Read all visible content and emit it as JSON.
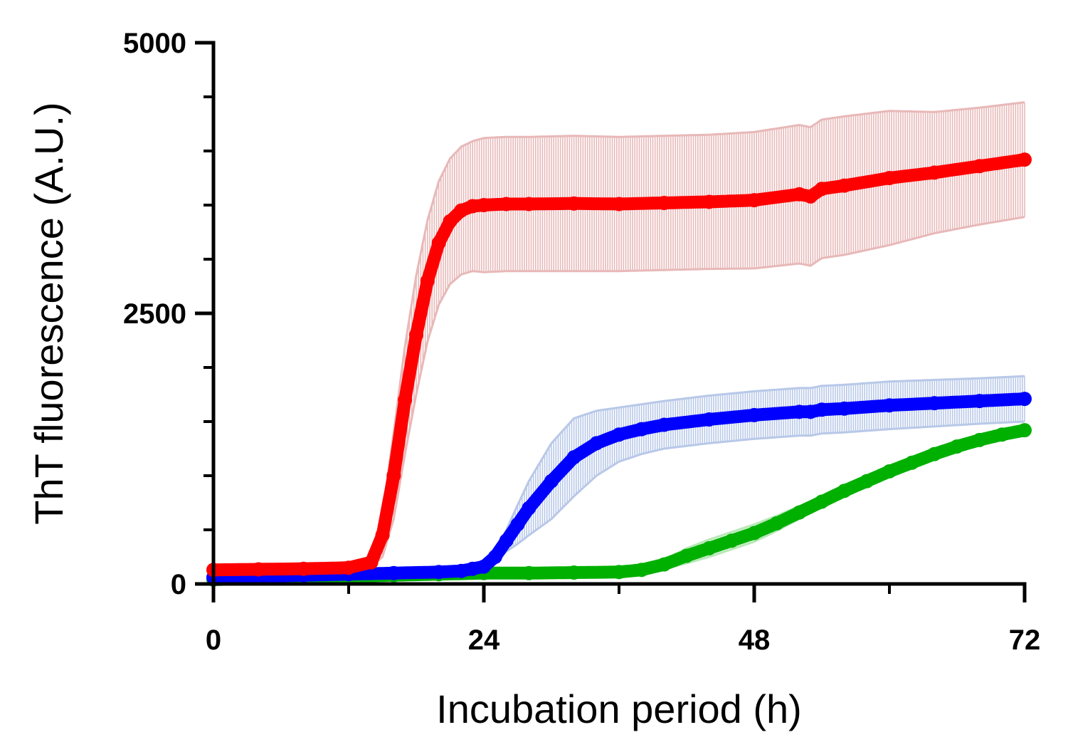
{
  "chart_data": {
    "type": "line",
    "title": "",
    "xlabel": "Incubation period (h)",
    "ylabel": "ThT fluorescence (A.U.)",
    "xlim": [
      0,
      72
    ],
    "ylim": [
      0,
      5000
    ],
    "x_ticks": [
      {
        "value": 0,
        "label": "0"
      },
      {
        "value": 24,
        "label": "24"
      },
      {
        "value": 48,
        "label": "48"
      },
      {
        "value": 72,
        "label": "72"
      }
    ],
    "x_minor_ticks": [
      12,
      36,
      60
    ],
    "y_ticks": [
      {
        "value": 0,
        "label": "0"
      },
      {
        "value": 2500,
        "label": "2500"
      },
      {
        "value": 5000,
        "label": "5000"
      }
    ],
    "y_minor_ticks": [
      500,
      1000,
      1500,
      2000,
      3000,
      3500,
      4000,
      4500
    ],
    "grid": false,
    "legend": "none",
    "series": [
      {
        "color": "#ff0000",
        "error_color": "#e8b8b8",
        "x": [
          0,
          4,
          8,
          12,
          14,
          15,
          16,
          17,
          18,
          19,
          20,
          21,
          22,
          23,
          24,
          26,
          28,
          32,
          36,
          40,
          44,
          48,
          52,
          53,
          54,
          56,
          60,
          64,
          68,
          72
        ],
        "y": [
          130,
          135,
          140,
          150,
          200,
          450,
          1000,
          1700,
          2300,
          2800,
          3150,
          3350,
          3450,
          3490,
          3500,
          3510,
          3510,
          3515,
          3510,
          3520,
          3530,
          3545,
          3600,
          3580,
          3650,
          3680,
          3750,
          3800,
          3860,
          3920
        ],
        "err": [
          0,
          0,
          0,
          0,
          50,
          200,
          400,
          500,
          550,
          560,
          570,
          580,
          590,
          600,
          620,
          620,
          620,
          625,
          620,
          620,
          620,
          630,
          640,
          640,
          640,
          640,
          620,
          560,
          540,
          530
        ]
      },
      {
        "color": "#0000ff",
        "error_color": "#b8c8e8",
        "x": [
          0,
          4,
          8,
          12,
          16,
          20,
          22,
          23,
          24,
          25,
          26,
          27,
          28,
          30,
          32,
          34,
          36,
          38,
          40,
          44,
          48,
          52,
          53,
          54,
          56,
          60,
          64,
          68,
          72
        ],
        "y": [
          60,
          70,
          80,
          90,
          100,
          110,
          120,
          140,
          160,
          250,
          400,
          550,
          700,
          950,
          1170,
          1300,
          1380,
          1430,
          1470,
          1520,
          1560,
          1590,
          1590,
          1610,
          1620,
          1650,
          1670,
          1690,
          1710
        ],
        "err": [
          0,
          0,
          0,
          0,
          0,
          0,
          0,
          0,
          10,
          50,
          100,
          180,
          250,
          350,
          360,
          300,
          250,
          230,
          220,
          220,
          220,
          220,
          220,
          220,
          220,
          220,
          215,
          210,
          210
        ]
      },
      {
        "color": "#00b000",
        "error_color": "#b8e8b8",
        "x": [
          0,
          4,
          8,
          12,
          16,
          20,
          24,
          28,
          32,
          36,
          38,
          40,
          42,
          44,
          46,
          48,
          50,
          52,
          54,
          56,
          58,
          60,
          62,
          64,
          66,
          68,
          70,
          72
        ],
        "y": [
          40,
          50,
          60,
          70,
          80,
          90,
          100,
          100,
          105,
          110,
          130,
          180,
          260,
          330,
          400,
          470,
          560,
          660,
          760,
          860,
          950,
          1040,
          1120,
          1200,
          1270,
          1330,
          1380,
          1420
        ],
        "err": [
          0,
          0,
          0,
          0,
          0,
          0,
          0,
          0,
          0,
          10,
          20,
          40,
          70,
          80,
          80,
          80,
          70,
          60,
          50,
          30,
          20,
          10,
          10,
          10,
          10,
          10,
          10,
          10
        ]
      }
    ]
  }
}
